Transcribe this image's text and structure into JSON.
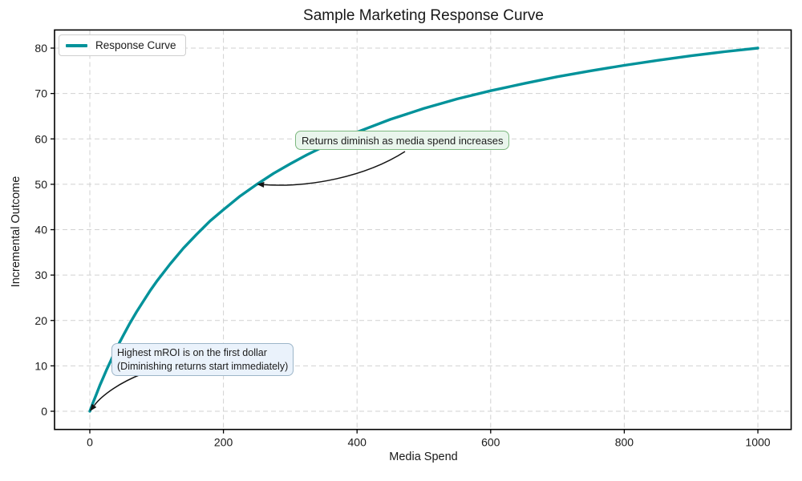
{
  "chart_data": {
    "type": "line",
    "title": "Sample Marketing Response Curve",
    "xlabel": "Media Spend",
    "ylabel": "Incremental Outcome",
    "xlim": [
      -50,
      1050
    ],
    "ylim": [
      -4,
      84
    ],
    "x_ticks": [
      0,
      200,
      400,
      600,
      800,
      1000
    ],
    "y_ticks": [
      0,
      10,
      20,
      30,
      40,
      50,
      60,
      70,
      80
    ],
    "grid": true,
    "grid_style": "dashed",
    "legend_position": "upper left",
    "series": [
      {
        "name": "Response Curve",
        "color": "#00929a",
        "points": [
          [
            0,
            0
          ],
          [
            5,
            2.0
          ],
          [
            10,
            3.8
          ],
          [
            15,
            5.7
          ],
          [
            20,
            7.4
          ],
          [
            25,
            9.1
          ],
          [
            30,
            10.7
          ],
          [
            35,
            12.3
          ],
          [
            40,
            13.8
          ],
          [
            45,
            15.3
          ],
          [
            50,
            16.7
          ],
          [
            60,
            19.4
          ],
          [
            70,
            21.9
          ],
          [
            80,
            24.2
          ],
          [
            90,
            26.5
          ],
          [
            100,
            28.6
          ],
          [
            120,
            32.4
          ],
          [
            140,
            35.9
          ],
          [
            160,
            39.0
          ],
          [
            180,
            41.9
          ],
          [
            200,
            44.4
          ],
          [
            225,
            47.4
          ],
          [
            250,
            50.0
          ],
          [
            275,
            52.4
          ],
          [
            300,
            54.5
          ],
          [
            325,
            56.5
          ],
          [
            350,
            58.3
          ],
          [
            375,
            60.0
          ],
          [
            400,
            61.5
          ],
          [
            450,
            64.3
          ],
          [
            500,
            66.7
          ],
          [
            550,
            68.8
          ],
          [
            600,
            70.6
          ],
          [
            650,
            72.2
          ],
          [
            700,
            73.7
          ],
          [
            750,
            75.0
          ],
          [
            800,
            76.2
          ],
          [
            850,
            77.3
          ],
          [
            900,
            78.3
          ],
          [
            950,
            79.2
          ],
          [
            1000,
            80.0
          ]
        ]
      }
    ],
    "annotations": [
      {
        "text": "Returns diminish as media spend increases",
        "xy": [
          250,
          50
        ],
        "facecolor": "#e9f5ec",
        "edgecolor": "#7db87f"
      },
      {
        "line1": "Highest mROI is on the first dollar",
        "line2": "(Diminishing returns start immediately)",
        "xy": [
          0,
          0
        ],
        "facecolor": "#eaf2fb",
        "edgecolor": "#9db6c9"
      }
    ],
    "colors": {
      "background": "#ffffff",
      "spines": "#000000",
      "grid": "#d1d1d1",
      "text": "#1a1a1a"
    }
  }
}
